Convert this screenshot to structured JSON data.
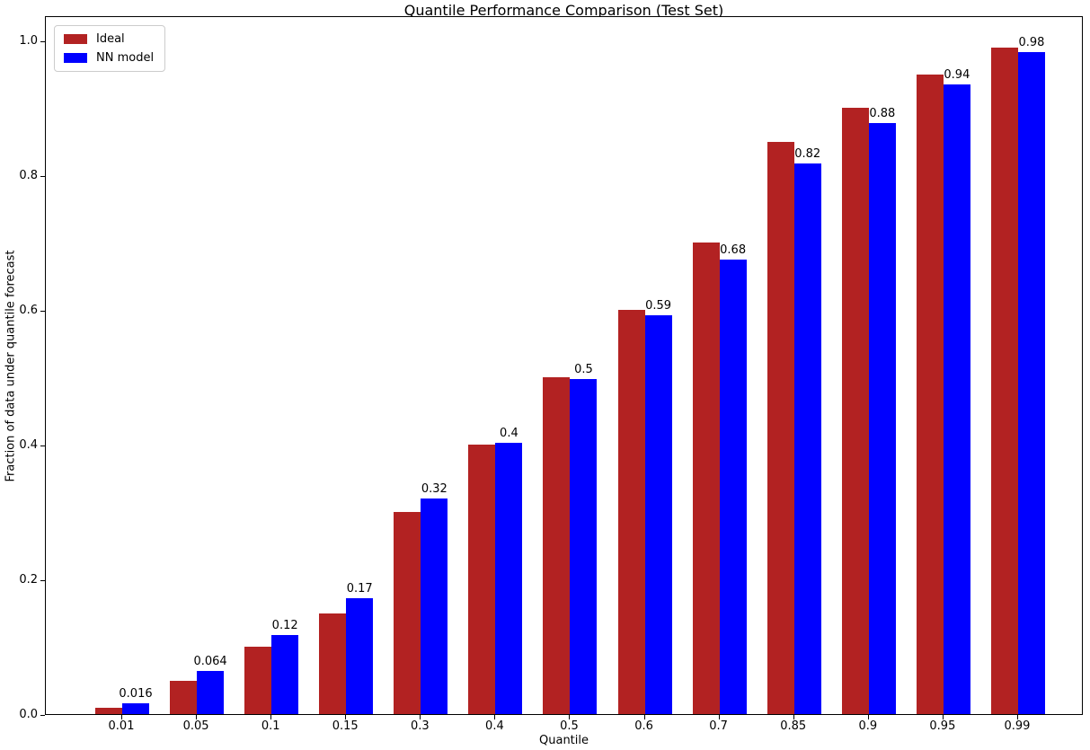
{
  "chart_data": {
    "type": "bar",
    "title": "Quantile Performance Comparison (Test Set)",
    "xlabel": "Quantile",
    "ylabel": "Fraction of data under quantile forecast",
    "categories": [
      "0.01",
      "0.05",
      "0.1",
      "0.15",
      "0.3",
      "0.4",
      "0.5",
      "0.6",
      "0.7",
      "0.85",
      "0.9",
      "0.95",
      "0.99"
    ],
    "series": [
      {
        "name": "Ideal",
        "color": "#B22222",
        "values": [
          0.01,
          0.05,
          0.1,
          0.15,
          0.3,
          0.4,
          0.5,
          0.6,
          0.7,
          0.85,
          0.9,
          0.95,
          0.99
        ]
      },
      {
        "name": "NN model",
        "color": "#0000FF",
        "values": [
          0.016,
          0.064,
          0.118,
          0.172,
          0.32,
          0.403,
          0.497,
          0.592,
          0.675,
          0.818,
          0.878,
          0.935,
          0.983
        ],
        "value_labels": [
          "0.016",
          "0.064",
          "0.12",
          "0.17",
          "0.32",
          "0.4",
          "0.5",
          "0.59",
          "0.68",
          "0.82",
          "0.88",
          "0.94",
          "0.98"
        ]
      }
    ],
    "yticks": [
      {
        "label": "0.0",
        "value": 0.0
      },
      {
        "label": "0.2",
        "value": 0.2
      },
      {
        "label": "0.4",
        "value": 0.4
      },
      {
        "label": "0.6",
        "value": 0.6
      },
      {
        "label": "0.8",
        "value": 0.8
      },
      {
        "label": "1.0",
        "value": 1.0
      }
    ],
    "ylim": [
      0,
      1.037
    ],
    "grid": false,
    "legend": {
      "position": "upper-left",
      "entries": [
        "Ideal",
        "NN model"
      ]
    }
  }
}
